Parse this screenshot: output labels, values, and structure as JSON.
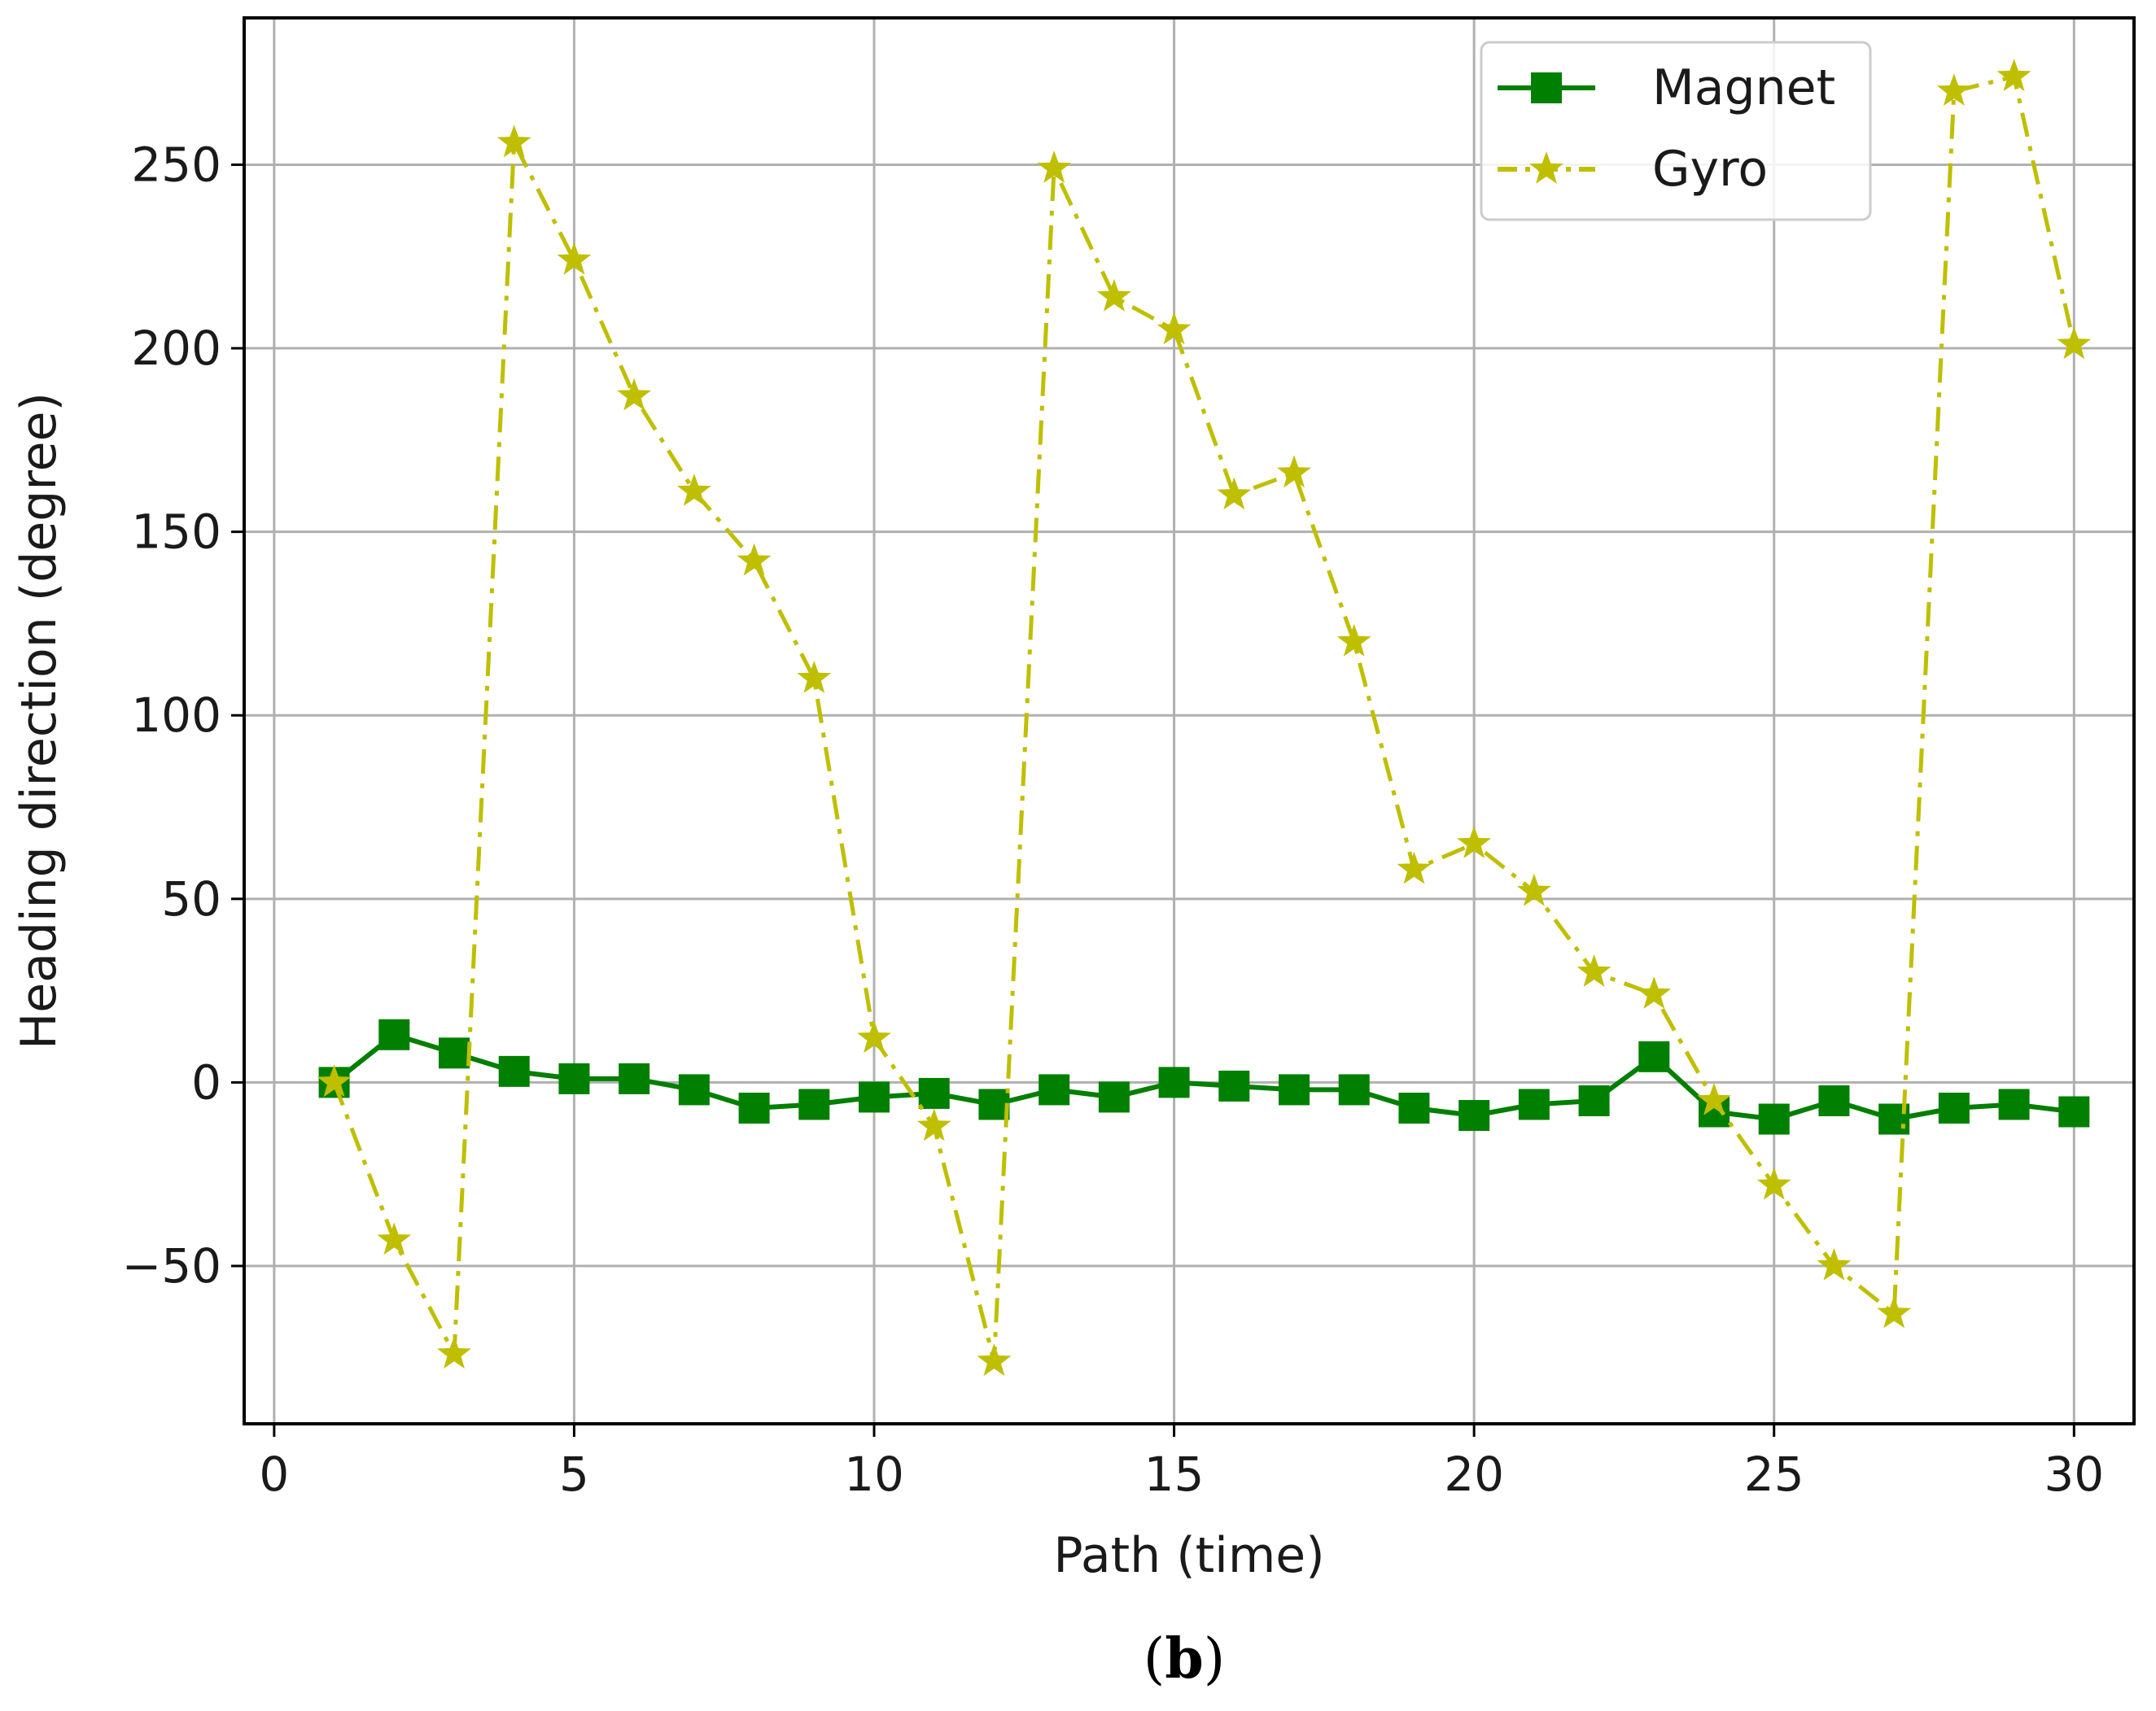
{
  "chart_data": {
    "type": "line",
    "xlabel": "Path (time)",
    "ylabel": "Heading direction (degree)",
    "xlim": [
      -0.5,
      31
    ],
    "ylim": [
      -93,
      290
    ],
    "xticks": [
      0,
      5,
      10,
      15,
      20,
      25,
      30
    ],
    "yticks": [
      -50,
      0,
      50,
      100,
      150,
      200,
      250
    ],
    "ytick_labels": [
      "−50",
      "0",
      "50",
      "100",
      "150",
      "200",
      "250"
    ],
    "grid": true,
    "legend_position": "top-right",
    "x": [
      1,
      2,
      3,
      4,
      5,
      6,
      7,
      8,
      9,
      10,
      11,
      12,
      13,
      14,
      15,
      16,
      17,
      18,
      19,
      20,
      21,
      22,
      23,
      24,
      25,
      26,
      27,
      28,
      29,
      30
    ],
    "series": [
      {
        "name": "Magnet",
        "color": "#007f00",
        "line_style": "solid",
        "marker": "square",
        "values": [
          0,
          13,
          8,
          3,
          1,
          1,
          -2,
          -7,
          -6,
          -4,
          -3,
          -6,
          -2,
          -4,
          0,
          -1,
          -2,
          -2,
          -7,
          -9,
          -6,
          -5,
          7,
          -8,
          -10,
          -5,
          -10,
          -7,
          -6,
          -8
        ]
      },
      {
        "name": "Gyro",
        "color": "#bfbf00",
        "line_style": "dash-dot",
        "marker": "star",
        "values": [
          0,
          -43,
          -74,
          256,
          224,
          187,
          161,
          142,
          110,
          12,
          -12,
          -76,
          249,
          214,
          205,
          160,
          166,
          120,
          58,
          65,
          52,
          30,
          24,
          -5,
          -28,
          -50,
          -63,
          270,
          274,
          201
        ]
      }
    ]
  },
  "caption": {
    "open": "(",
    "label": "b",
    "close": ")"
  }
}
